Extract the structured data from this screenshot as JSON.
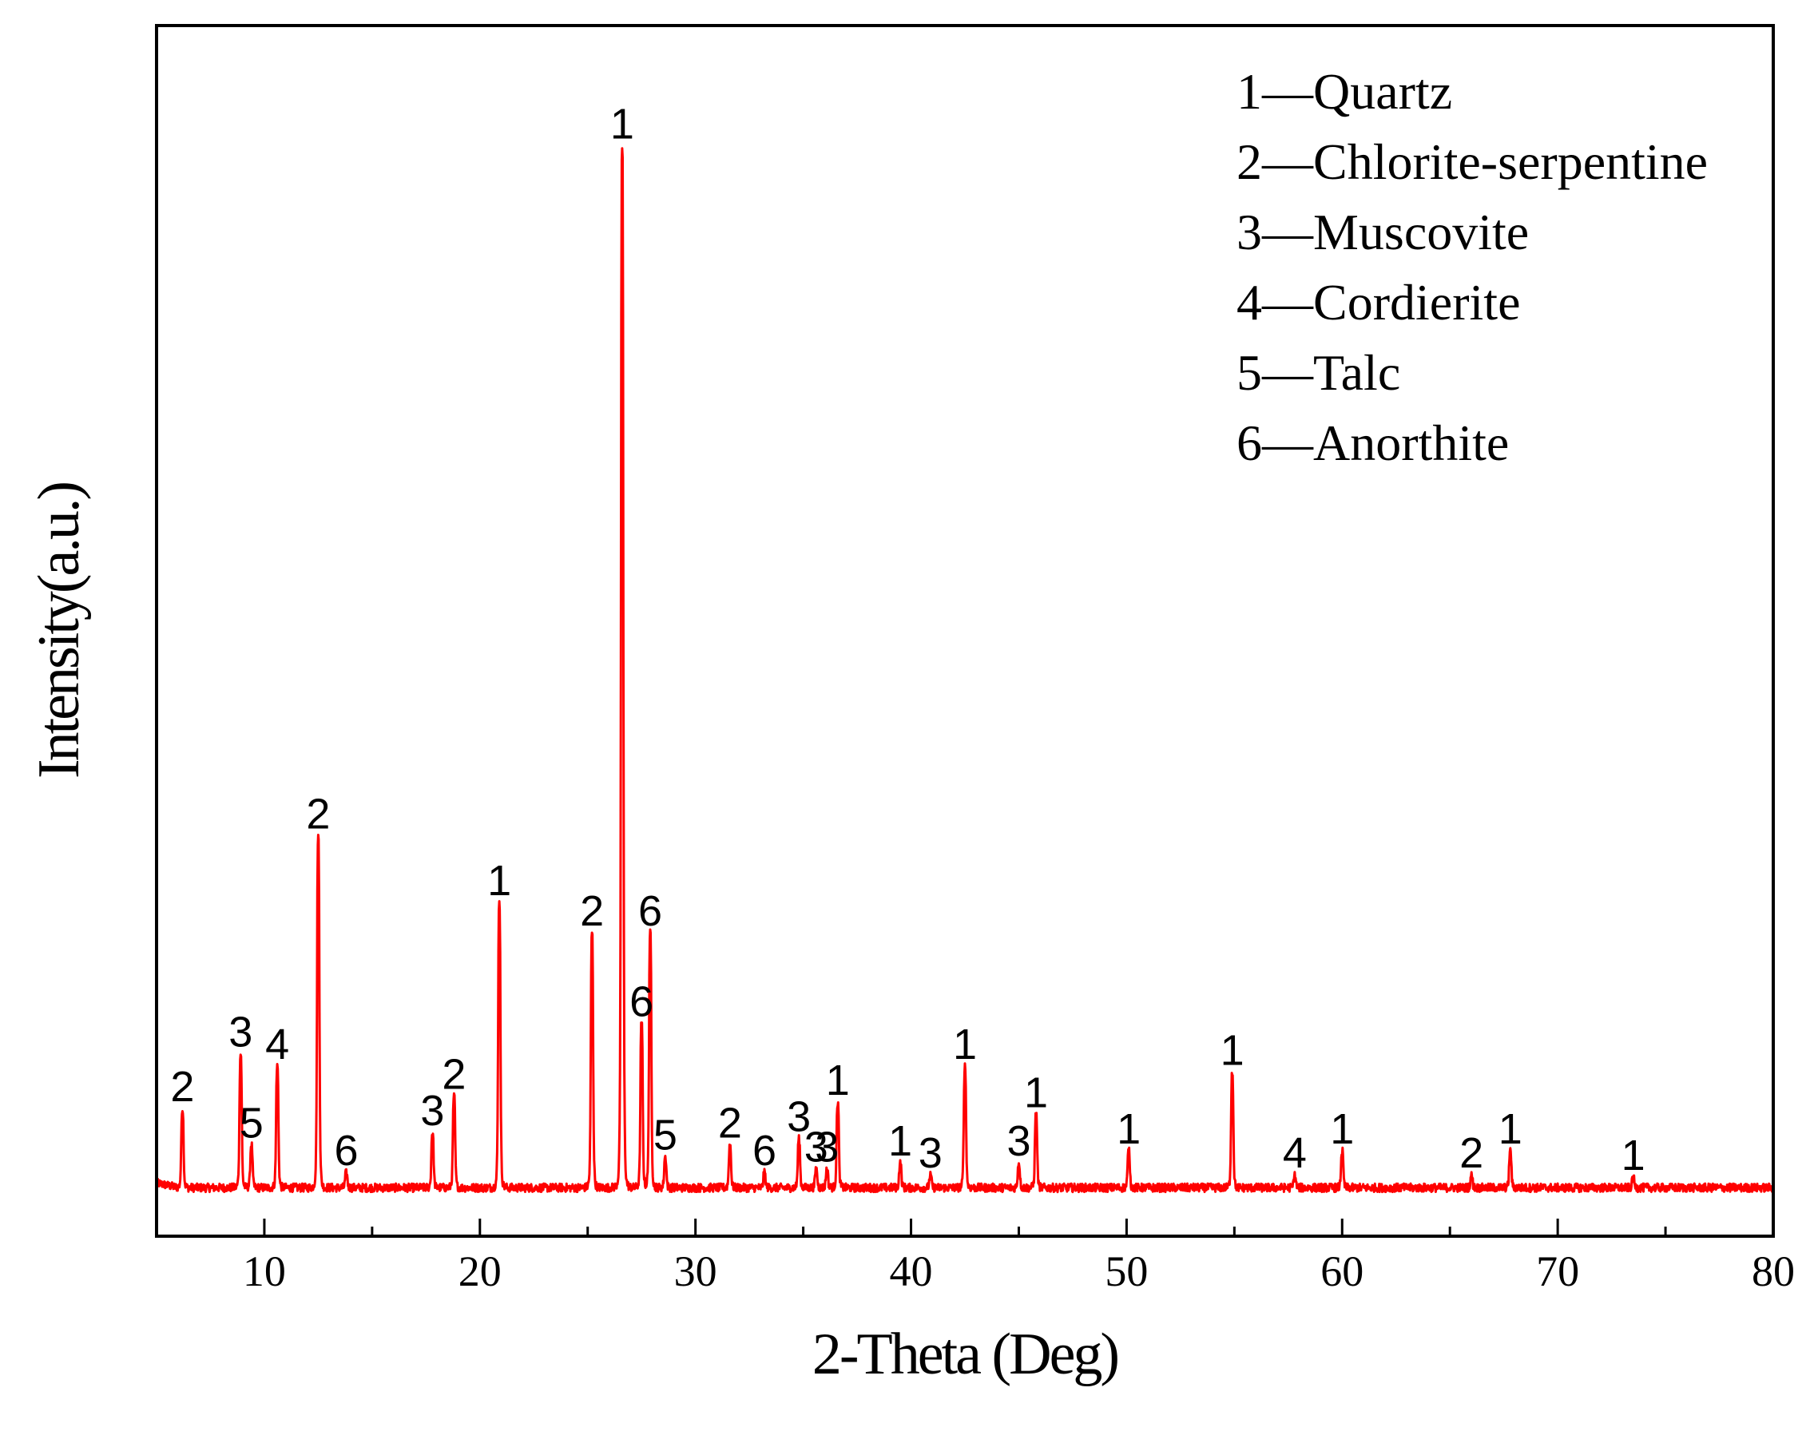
{
  "chart_data": {
    "type": "line",
    "title": "",
    "xlabel": "2-Theta (Deg)",
    "ylabel": "Intensity(a.u.)",
    "xlim": [
      5,
      80
    ],
    "ylim": [
      0,
      100
    ],
    "x_major_ticks": [
      10,
      20,
      30,
      40,
      50,
      60,
      70,
      80
    ],
    "x_minor_step": 5,
    "y_tick_labels": false,
    "grid": false,
    "line_color": "#ff0000",
    "baseline": 4,
    "legend": {
      "placement": "top-right",
      "separator": "—",
      "items": [
        {
          "id": "1",
          "name": "Quartz"
        },
        {
          "id": "2",
          "name": "Chlorite-serpentine"
        },
        {
          "id": "3",
          "name": "Muscovite"
        },
        {
          "id": "4",
          "name": "Cordierite"
        },
        {
          "id": "5",
          "name": "Talc"
        },
        {
          "id": "6",
          "name": "Anorthite"
        }
      ]
    },
    "peaks": [
      {
        "x": 6.2,
        "y": 10.5,
        "label": "2"
      },
      {
        "x": 8.9,
        "y": 15.0,
        "label": "3"
      },
      {
        "x": 9.4,
        "y": 7.5,
        "label": "5"
      },
      {
        "x": 10.6,
        "y": 14.0,
        "label": "4"
      },
      {
        "x": 12.5,
        "y": 33.0,
        "label": "2"
      },
      {
        "x": 13.8,
        "y": 5.2,
        "label": "6"
      },
      {
        "x": 17.8,
        "y": 8.5,
        "label": "3"
      },
      {
        "x": 18.8,
        "y": 11.5,
        "label": "2"
      },
      {
        "x": 20.9,
        "y": 27.5,
        "label": "1"
      },
      {
        "x": 25.2,
        "y": 25.0,
        "label": "2"
      },
      {
        "x": 26.6,
        "y": 90.0,
        "label": "1"
      },
      {
        "x": 27.5,
        "y": 17.5,
        "label": "6"
      },
      {
        "x": 27.9,
        "y": 25.0,
        "label": "6"
      },
      {
        "x": 28.6,
        "y": 6.5,
        "label": "5"
      },
      {
        "x": 31.6,
        "y": 7.5,
        "label": "2"
      },
      {
        "x": 33.2,
        "y": 5.2,
        "label": "6"
      },
      {
        "x": 34.8,
        "y": 8.0,
        "label": "3"
      },
      {
        "x": 35.6,
        "y": 5.5,
        "label": "3"
      },
      {
        "x": 36.1,
        "y": 5.5,
        "label": "3"
      },
      {
        "x": 36.6,
        "y": 11.0,
        "label": "1"
      },
      {
        "x": 39.5,
        "y": 6.0,
        "label": "1"
      },
      {
        "x": 40.9,
        "y": 5.0,
        "label": "3"
      },
      {
        "x": 42.5,
        "y": 14.0,
        "label": "1"
      },
      {
        "x": 45.0,
        "y": 6.0,
        "label": "3"
      },
      {
        "x": 45.8,
        "y": 10.0,
        "label": "1"
      },
      {
        "x": 50.1,
        "y": 7.0,
        "label": "1"
      },
      {
        "x": 54.9,
        "y": 13.5,
        "label": "1"
      },
      {
        "x": 57.8,
        "y": 5.0,
        "label": "4"
      },
      {
        "x": 60.0,
        "y": 7.0,
        "label": "1"
      },
      {
        "x": 66.0,
        "y": 5.0,
        "label": "2"
      },
      {
        "x": 67.8,
        "y": 7.0,
        "label": "1"
      },
      {
        "x": 73.5,
        "y": 4.8,
        "label": "1"
      }
    ]
  }
}
